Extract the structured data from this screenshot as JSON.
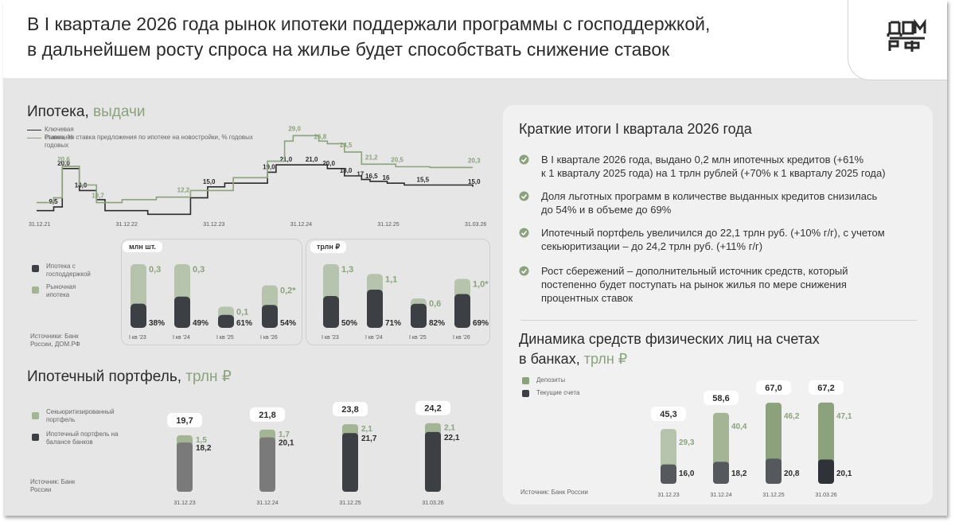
{
  "header": {
    "title_line1": "В I квартале 2026 года рынок ипотеки поддержали программы с господдержкой,",
    "title_line2": "в дальнейшем росту спроса на жилье будет способствать снижение ставок",
    "logo_line1": "ДОМ",
    "logo_line2": "РФ"
  },
  "colors": {
    "green": "#8ba27c",
    "light_green": "#a3b595",
    "gray": "#7a7a7a",
    "dark": "#3c3f44",
    "ltgreen_bar": "#b7c4ad"
  },
  "mortgage_issuance": {
    "title_main": "Ипотека,",
    "title_accent": "выдачи",
    "legend_key_rate": "Ключевая ставка, % годовых",
    "legend_market_rate": "Рыночная ставка предложения по ипотеке на новостройки, % годовых",
    "x_labels": [
      "31.12.21",
      "31.12.22",
      "31.12.23",
      "31.12.24",
      "31.12.25",
      "31.03.26"
    ],
    "units_count": "млн шт.",
    "units_value": "трлн ₽",
    "legend_gov": "Ипотека с господдержкой",
    "legend_market": "Рыночная ипотека",
    "sources": "Источники: Банк России, ДОМ.РФ"
  },
  "portfolio": {
    "title_main": "Ипотечный портфель,",
    "title_accent": "трлн ₽",
    "legend_securitized": "Секьюритизированный портфель",
    "legend_balance": "Ипотечный портфель на балансе банков",
    "source": "Источник: Банк России"
  },
  "summary": {
    "title": "Краткие итоги I квартала 2026 года",
    "bullets": [
      {
        "l1": "В I квартале 2026 года, выдано 0,2 млн ипотечных кредитов (+61%",
        "l2": "к 1 кварталу 2025 года) на 1 трлн рублей (+70% к 1 кварталу 2025 года)",
        "l3": ""
      },
      {
        "l1": "Доля льготных программ в количестве выданных кредитов снизилась",
        "l2": "до 54% и в объеме до 69%",
        "l3": ""
      },
      {
        "l1": "Ипотечный портфель увеличился до 22,1 трлн руб. (+10% г/г), с учетом",
        "l2": "секьюритизации – до 24,2 трлн руб. (+11% г/г)",
        "l3": ""
      },
      {
        "l1": "Рост сбережений – дополнительный источник средств, который",
        "l2": "постепенно будет поступать на рынок жилья по мере снижения",
        "l3": "процентных ставок"
      }
    ]
  },
  "deposits": {
    "title_l1": "Динамика средств физических лиц на счетах",
    "title_l2_main": "в банках,",
    "title_l2_accent": "трлн ₽",
    "legend_deposits": "Депозиты",
    "legend_current": "Текущие счета",
    "source": "Источник: Банк России"
  },
  "chart_data": [
    {
      "type": "line",
      "x": [
        "31.12.21",
        "31.12.22",
        "31.12.23",
        "31.12.24",
        "31.12.25",
        "31.03.26"
      ],
      "series": [
        {
          "name": "Ключевая ставка, % годовых",
          "points": [
            [
              0,
              8.5
            ],
            [
              2,
              9.5
            ],
            [
              3,
              20.0
            ],
            [
              5,
              14.0
            ],
            [
              7,
              11.5
            ],
            [
              8,
              8.5
            ],
            [
              13,
              7.5
            ],
            [
              18,
              12.0
            ],
            [
              20,
              15.0
            ],
            [
              22,
              16.0
            ],
            [
              25,
              16.0
            ],
            [
              27,
              19.0
            ],
            [
              28,
              21.0
            ],
            [
              33,
              21.0
            ],
            [
              34,
              20.0
            ],
            [
              36,
              18.0
            ],
            [
              38,
              17.0
            ],
            [
              39,
              16.5
            ],
            [
              41,
              16.0
            ],
            [
              43,
              15.5
            ],
            [
              51,
              15.0
            ]
          ],
          "labels": [
            [
              3,
              "20,0"
            ],
            [
              5,
              "14,0"
            ],
            [
              2,
              "9,5"
            ],
            [
              20,
              "15,0"
            ],
            [
              27,
              "19,0"
            ],
            [
              29,
              "21,0"
            ],
            [
              32,
              "21,0"
            ],
            [
              34,
              "20,0"
            ],
            [
              36,
              "18,0"
            ],
            [
              38,
              "17"
            ],
            [
              39,
              "16,5"
            ],
            [
              41,
              "16"
            ],
            [
              45,
              "15,5"
            ],
            [
              51,
              "15,0"
            ]
          ]
        },
        {
          "name": "Рыночная ставка предложения по ипотеке на новостройки, % годовых",
          "points": [
            [
              0,
              10.7
            ],
            [
              2,
              12.0
            ],
            [
              3,
              20.6
            ],
            [
              5,
              15.5
            ],
            [
              7,
              10.7
            ],
            [
              10,
              11.5
            ],
            [
              14,
              12.2
            ],
            [
              18,
              14.0
            ],
            [
              23,
              17.5
            ],
            [
              27,
              22.0
            ],
            [
              29,
              27.5
            ],
            [
              30,
              29.0
            ],
            [
              33,
              27.5
            ],
            [
              34,
              26.8
            ],
            [
              36,
              24.5
            ],
            [
              38,
              21.2
            ],
            [
              42,
              20.5
            ],
            [
              46,
              20.3
            ],
            [
              51,
              20.3
            ]
          ],
          "labels": [
            [
              3,
              "20,6"
            ],
            [
              7,
              "10,7"
            ],
            [
              17,
              "12,2"
            ],
            [
              30,
              "29,0"
            ],
            [
              33,
              "26,8"
            ],
            [
              36,
              "24,5"
            ],
            [
              39,
              "21,2"
            ],
            [
              42,
              "20,5"
            ],
            [
              51,
              "20,3"
            ]
          ]
        }
      ]
    },
    {
      "type": "bar",
      "title": "млн шт.",
      "categories": [
        "I кв '23",
        "I кв '24",
        "I кв '25",
        "I кв '26"
      ],
      "totals": [
        "0,3",
        "0,3",
        "0,1",
        "0,2*"
      ],
      "gov_share": [
        "38%",
        "49%",
        "61%",
        "54%"
      ],
      "gov_share_values": [
        0.38,
        0.49,
        0.61,
        0.54
      ],
      "total_values": [
        0.3,
        0.3,
        0.1,
        0.2
      ]
    },
    {
      "type": "bar",
      "title": "трлн ₽",
      "categories": [
        "I кв '23",
        "I кв '24",
        "I кв '25",
        "I кв '26"
      ],
      "totals": [
        "1,3",
        "1,1",
        "0,6",
        "1,0*"
      ],
      "gov_share": [
        "50%",
        "71%",
        "82%",
        "69%"
      ],
      "gov_share_values": [
        0.5,
        0.71,
        0.82,
        0.69
      ],
      "total_values": [
        1.3,
        1.1,
        0.6,
        1.0
      ]
    },
    {
      "type": "bar",
      "title": "Ипотечный портфель, трлн ₽",
      "categories": [
        "31.12.23",
        "31.12.24",
        "31.12.25",
        "31.03.26"
      ],
      "series": [
        {
          "name": "Ипотечный портфель на балансе банков",
          "values": [
            18.2,
            20.1,
            21.7,
            22.1
          ],
          "labels": [
            "18,2",
            "20,1",
            "21,7",
            "22,1"
          ]
        },
        {
          "name": "Секьюритизированный портфель",
          "values": [
            1.5,
            1.7,
            2.1,
            2.1
          ],
          "labels": [
            "1,5",
            "1,7",
            "2,1",
            "2,1"
          ]
        }
      ],
      "totals": [
        "19,7",
        "21,8",
        "23,8",
        "24,2"
      ],
      "total_values": [
        19.7,
        21.8,
        23.8,
        24.2
      ]
    },
    {
      "type": "bar",
      "title": "Динамика средств физических лиц на счетах в банках, трлн ₽",
      "categories": [
        "31.12.23",
        "31.12.24",
        "31.12.25",
        "31.03.26"
      ],
      "series": [
        {
          "name": "Текущие счета",
          "values": [
            16.0,
            18.2,
            20.8,
            20.1
          ],
          "labels": [
            "16,0",
            "18,2",
            "20,8",
            "20,1"
          ]
        },
        {
          "name": "Депозиты",
          "values": [
            29.3,
            40.4,
            46.2,
            47.1
          ],
          "labels": [
            "29,3",
            "40,4",
            "46,2",
            "47,1"
          ]
        }
      ],
      "totals": [
        "45,3",
        "58,6",
        "67,0",
        "67,2"
      ],
      "total_values": [
        45.3,
        58.6,
        67.0,
        67.2
      ]
    }
  ]
}
